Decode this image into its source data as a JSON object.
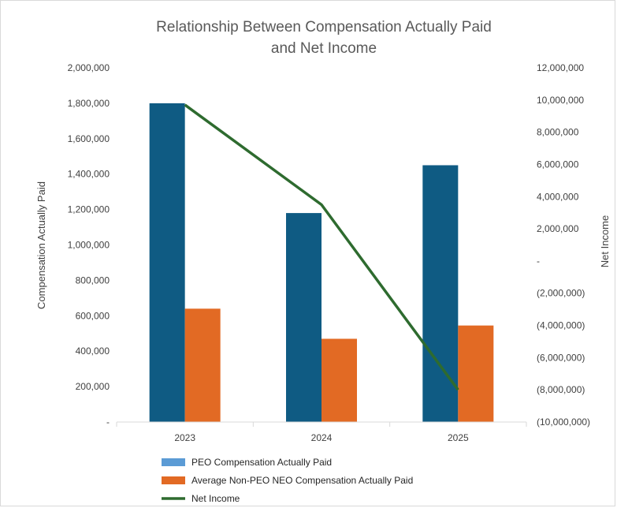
{
  "chart_data": {
    "type": "bar",
    "title_lines": [
      "Relationship Between Compensation Actually Paid",
      "and Net Income"
    ],
    "categories": [
      "2023",
      "2024",
      "2025"
    ],
    "ylabel_left": "Compensation Actually Paid",
    "ylabel_right": "Net Income",
    "ylim_left": [
      0,
      2000000
    ],
    "ylim_right": [
      -10000000,
      12000000
    ],
    "left_ticks": [
      "-",
      "200,000",
      "400,000",
      "600,000",
      "800,000",
      "1,000,000",
      "1,200,000",
      "1,400,000",
      "1,600,000",
      "1,800,000",
      "2,000,000"
    ],
    "right_ticks": [
      "(10,000,000)",
      "(8,000,000)",
      "(6,000,000)",
      "(4,000,000)",
      "(2,000,000)",
      "-",
      "2,000,000",
      "4,000,000",
      "6,000,000",
      "8,000,000",
      "10,000,000",
      "12,000,000"
    ],
    "series": [
      {
        "name": "PEO Compensation Actually Paid",
        "type": "bar",
        "axis": "left",
        "color": "#0f5b83",
        "legend_color": "#5b9bd5",
        "values": [
          1800000,
          1180000,
          1450000
        ]
      },
      {
        "name": "Average Non-PEO NEO Compensation Actually Paid",
        "type": "bar",
        "axis": "left",
        "color": "#e26a24",
        "legend_color": "#e26a24",
        "values": [
          640000,
          470000,
          545000
        ]
      },
      {
        "name": "Net Income",
        "type": "line",
        "axis": "right",
        "color": "#2e6b2f",
        "legend_color": "#2e6b2f",
        "values": [
          9700000,
          3500000,
          -8000000
        ]
      }
    ],
    "grid": false,
    "legend_position": "bottom-left"
  }
}
